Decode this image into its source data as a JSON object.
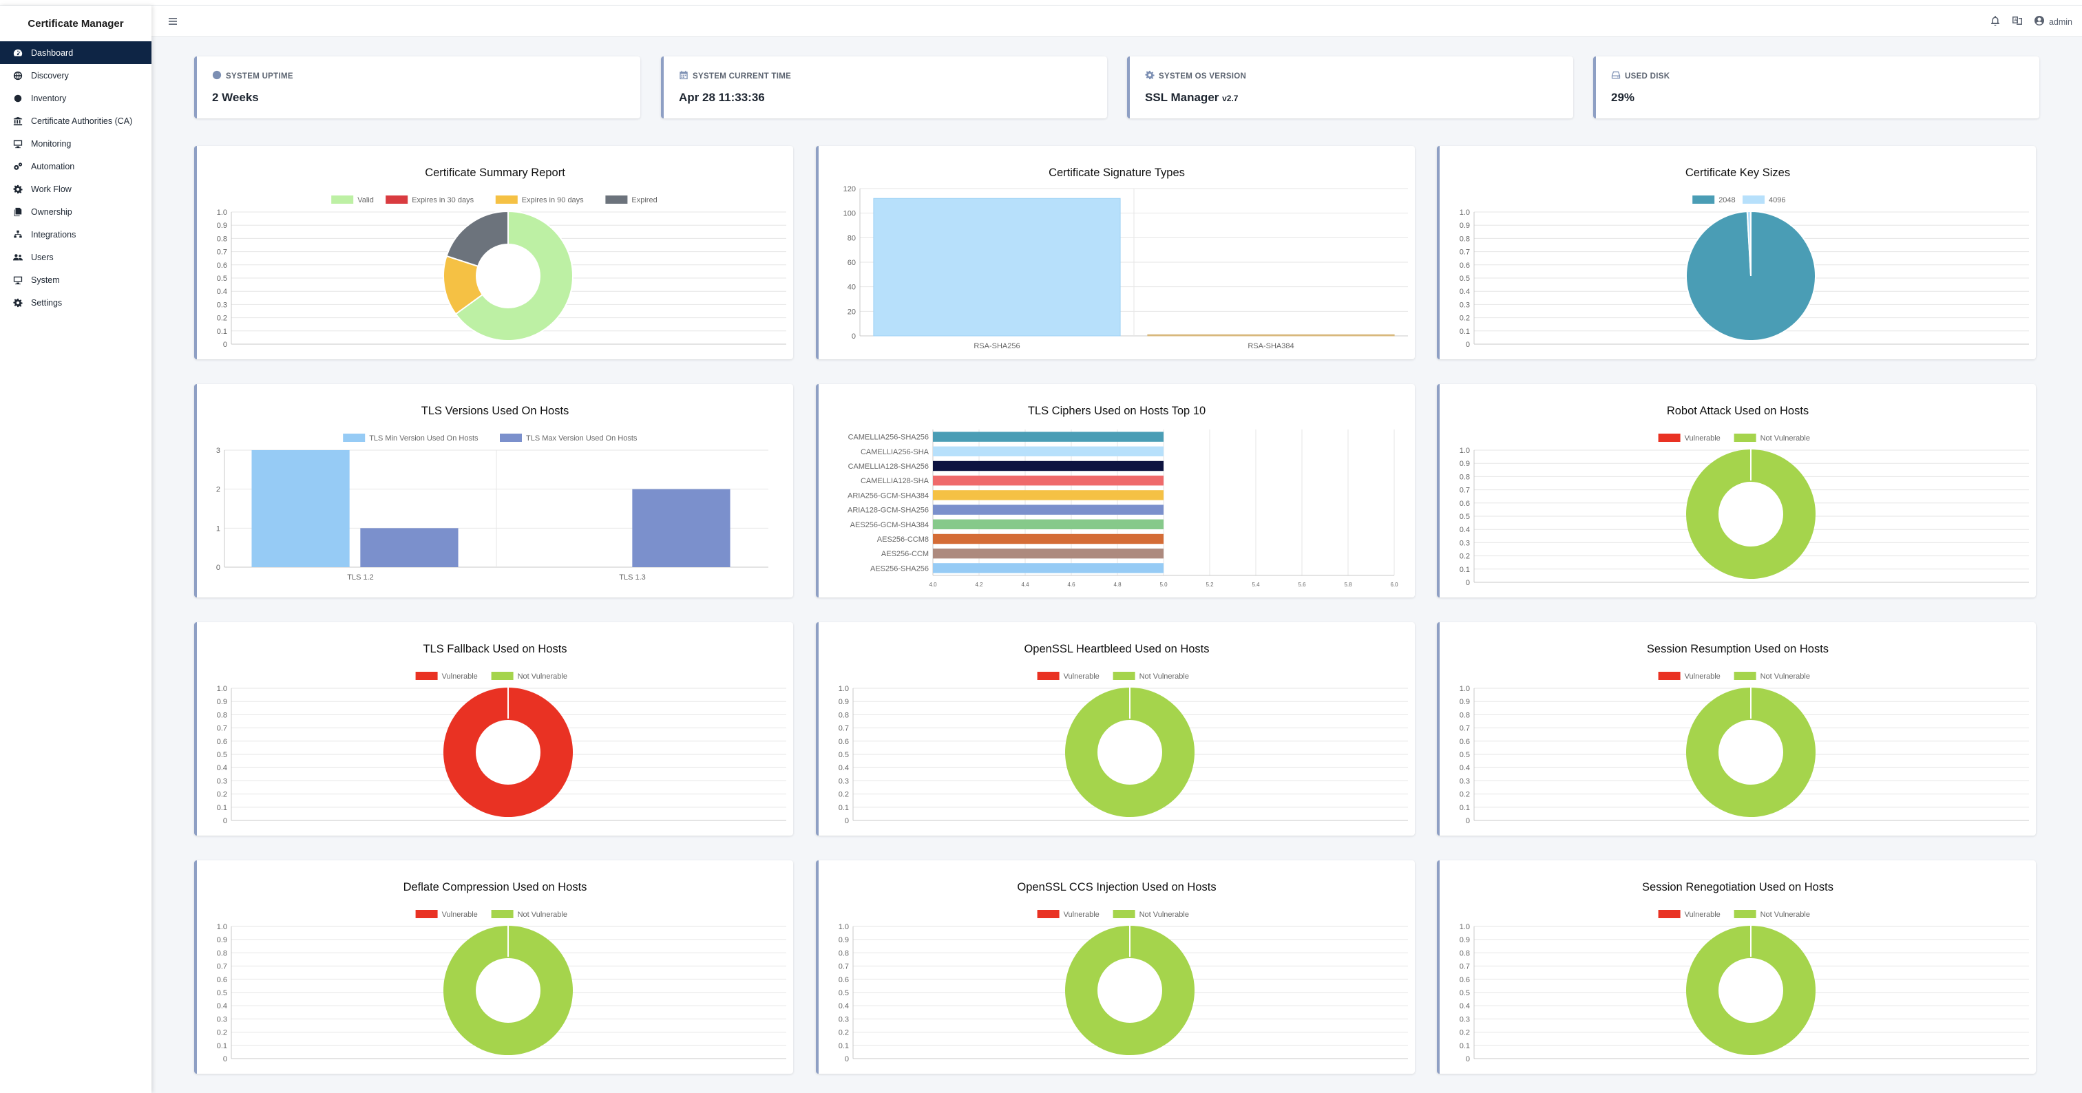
{
  "app": {
    "title": "Certificate Manager"
  },
  "sidebar": {
    "items": [
      {
        "label": "Dashboard",
        "icon": "dashboard-icon",
        "active": true
      },
      {
        "label": "Discovery",
        "icon": "globe-icon"
      },
      {
        "label": "Inventory",
        "icon": "cube-icon"
      },
      {
        "label": "Certificate Authorities (CA)",
        "icon": "bank-icon"
      },
      {
        "label": "Monitoring",
        "icon": "monitor-icon"
      },
      {
        "label": "Automation",
        "icon": "cogs-icon"
      },
      {
        "label": "Work Flow",
        "icon": "gear-icon"
      },
      {
        "label": "Ownership",
        "icon": "copy-icon"
      },
      {
        "label": "Integrations",
        "icon": "sitemap-icon"
      },
      {
        "label": "Users",
        "icon": "users-icon"
      },
      {
        "label": "System",
        "icon": "desktop-icon"
      },
      {
        "label": "Settings",
        "icon": "settings-icon"
      }
    ]
  },
  "topbar": {
    "user": "admin"
  },
  "info_cards": [
    {
      "label": "SYSTEM UPTIME",
      "value": "2 Weeks",
      "suffix": "",
      "icon": "clock-icon"
    },
    {
      "label": "SYSTEM CURRENT TIME",
      "value": "Apr 28 11:33:36",
      "suffix": "",
      "icon": "calendar-icon"
    },
    {
      "label": "SYSTEM OS VERSION",
      "value": "SSL Manager",
      "suffix": "v2.7",
      "icon": "gear-icon"
    },
    {
      "label": "USED DISK",
      "value": "29%",
      "suffix": "",
      "icon": "hdd-icon"
    }
  ],
  "colors": {
    "valid": "#bdf0a4",
    "expires30": "#d93b40",
    "expires90": "#f5c144",
    "expired": "#6c737c",
    "rsa256": "#b7e0fb",
    "rsa384": "#d8b87c",
    "key2048": "#4a9db5",
    "key4096": "#b7e0fb",
    "tlsmin": "#96cbf5",
    "tlsmax": "#7b90cc",
    "vulnerable": "#e93223",
    "notvulnerable": "#a5d44c"
  },
  "chart_data": [
    {
      "type": "doughnut",
      "title": "Certificate Summary Report",
      "legend": [
        "Valid",
        "Expires in 30 days",
        "Expires in 90 days",
        "Expired"
      ],
      "values": [
        65,
        0,
        15,
        20
      ],
      "yticks": [
        "1.0",
        "0.9",
        "0.8",
        "0.7",
        "0.6",
        "0.5",
        "0.4",
        "0.3",
        "0.2",
        "0.1",
        "0"
      ]
    },
    {
      "type": "bar",
      "title": "Certificate Signature Types",
      "categories": [
        "RSA-SHA256",
        "RSA-SHA384"
      ],
      "values": [
        112,
        1
      ],
      "ylim": [
        0,
        120
      ],
      "yticks": [
        "120",
        "100",
        "80",
        "60",
        "40",
        "20",
        "0"
      ]
    },
    {
      "type": "pie",
      "title": "Certificate Key Sizes",
      "legend": [
        "2048",
        "4096"
      ],
      "values": [
        111,
        1
      ],
      "yticks": [
        "1.0",
        "0.9",
        "0.8",
        "0.7",
        "0.6",
        "0.5",
        "0.4",
        "0.3",
        "0.2",
        "0.1",
        "0"
      ]
    },
    {
      "type": "bar",
      "title": "TLS Versions Used On Hosts",
      "categories": [
        "TLS 1.2",
        "TLS 1.3"
      ],
      "series": [
        {
          "name": "TLS Min Version Used On Hosts",
          "values": [
            3,
            0
          ]
        },
        {
          "name": "TLS Max Version Used On Hosts",
          "values": [
            1,
            2
          ]
        }
      ],
      "ylim": [
        0,
        3
      ],
      "yticks": [
        "3",
        "2",
        "1",
        "0"
      ]
    },
    {
      "type": "horizontal-bar",
      "title": "TLS Ciphers Used on Hosts Top 10",
      "categories": [
        "CAMELLIA256-SHA256",
        "CAMELLIA256-SHA",
        "CAMELLIA128-SHA256",
        "CAMELLIA128-SHA",
        "ARIA256-GCM-SHA384",
        "ARIA128-GCM-SHA256",
        "AES256-GCM-SHA384",
        "AES256-CCM8",
        "AES256-CCM",
        "AES256-SHA256"
      ],
      "values": [
        5,
        5,
        5,
        5,
        5,
        5,
        5,
        5,
        5,
        5
      ],
      "bar_colors": [
        "#4a9db5",
        "#b7e0fb",
        "#0d1340",
        "#ef6a6b",
        "#f5c144",
        "#7b90cc",
        "#86c98a",
        "#d46c36",
        "#ad8a7e",
        "#96cbf5"
      ],
      "xlim": [
        4.0,
        6.0
      ],
      "xticks": [
        "4.0",
        "4.2",
        "4.4",
        "4.6",
        "4.8",
        "5.0",
        "5.2",
        "5.4",
        "5.6",
        "5.8",
        "6.0"
      ]
    },
    {
      "type": "doughnut",
      "title": "Robot Attack Used on Hosts",
      "legend": [
        "Vulnerable",
        "Not Vulnerable"
      ],
      "values": [
        0,
        1
      ],
      "yticks": [
        "1.0",
        "0.9",
        "0.8",
        "0.7",
        "0.6",
        "0.5",
        "0.4",
        "0.3",
        "0.2",
        "0.1",
        "0"
      ]
    },
    {
      "type": "doughnut",
      "title": "TLS Fallback Used on Hosts",
      "legend": [
        "Vulnerable",
        "Not Vulnerable"
      ],
      "values": [
        1,
        0
      ],
      "yticks": [
        "1.0",
        "0.9",
        "0.8",
        "0.7",
        "0.6",
        "0.5",
        "0.4",
        "0.3",
        "0.2",
        "0.1",
        "0"
      ]
    },
    {
      "type": "doughnut",
      "title": "OpenSSL Heartbleed Used on Hosts",
      "legend": [
        "Vulnerable",
        "Not Vulnerable"
      ],
      "values": [
        0,
        1
      ],
      "yticks": [
        "1.0",
        "0.9",
        "0.8",
        "0.7",
        "0.6",
        "0.5",
        "0.4",
        "0.3",
        "0.2",
        "0.1",
        "0"
      ]
    },
    {
      "type": "doughnut",
      "title": "Session Resumption Used on Hosts",
      "legend": [
        "Vulnerable",
        "Not Vulnerable"
      ],
      "values": [
        0,
        1
      ],
      "yticks": [
        "1.0",
        "0.9",
        "0.8",
        "0.7",
        "0.6",
        "0.5",
        "0.4",
        "0.3",
        "0.2",
        "0.1",
        "0"
      ]
    },
    {
      "type": "doughnut",
      "title": "Deflate Compression Used on Hosts",
      "legend": [
        "Vulnerable",
        "Not Vulnerable"
      ],
      "values": [
        0,
        1
      ],
      "yticks": [
        "1.0",
        "0.9",
        "0.8",
        "0.7",
        "0.6",
        "0.5",
        "0.4",
        "0.3",
        "0.2",
        "0.1",
        "0"
      ]
    },
    {
      "type": "doughnut",
      "title": "OpenSSL CCS Injection Used on Hosts",
      "legend": [
        "Vulnerable",
        "Not Vulnerable"
      ],
      "values": [
        0,
        1
      ],
      "yticks": [
        "1.0",
        "0.9",
        "0.8",
        "0.7",
        "0.6",
        "0.5",
        "0.4",
        "0.3",
        "0.2",
        "0.1",
        "0"
      ]
    },
    {
      "type": "doughnut",
      "title": "Session Renegotiation Used on Hosts",
      "legend": [
        "Vulnerable",
        "Not Vulnerable"
      ],
      "values": [
        0,
        1
      ],
      "yticks": [
        "1.0",
        "0.9",
        "0.8",
        "0.7",
        "0.6",
        "0.5",
        "0.4",
        "0.3",
        "0.2",
        "0.1",
        "0"
      ]
    }
  ]
}
